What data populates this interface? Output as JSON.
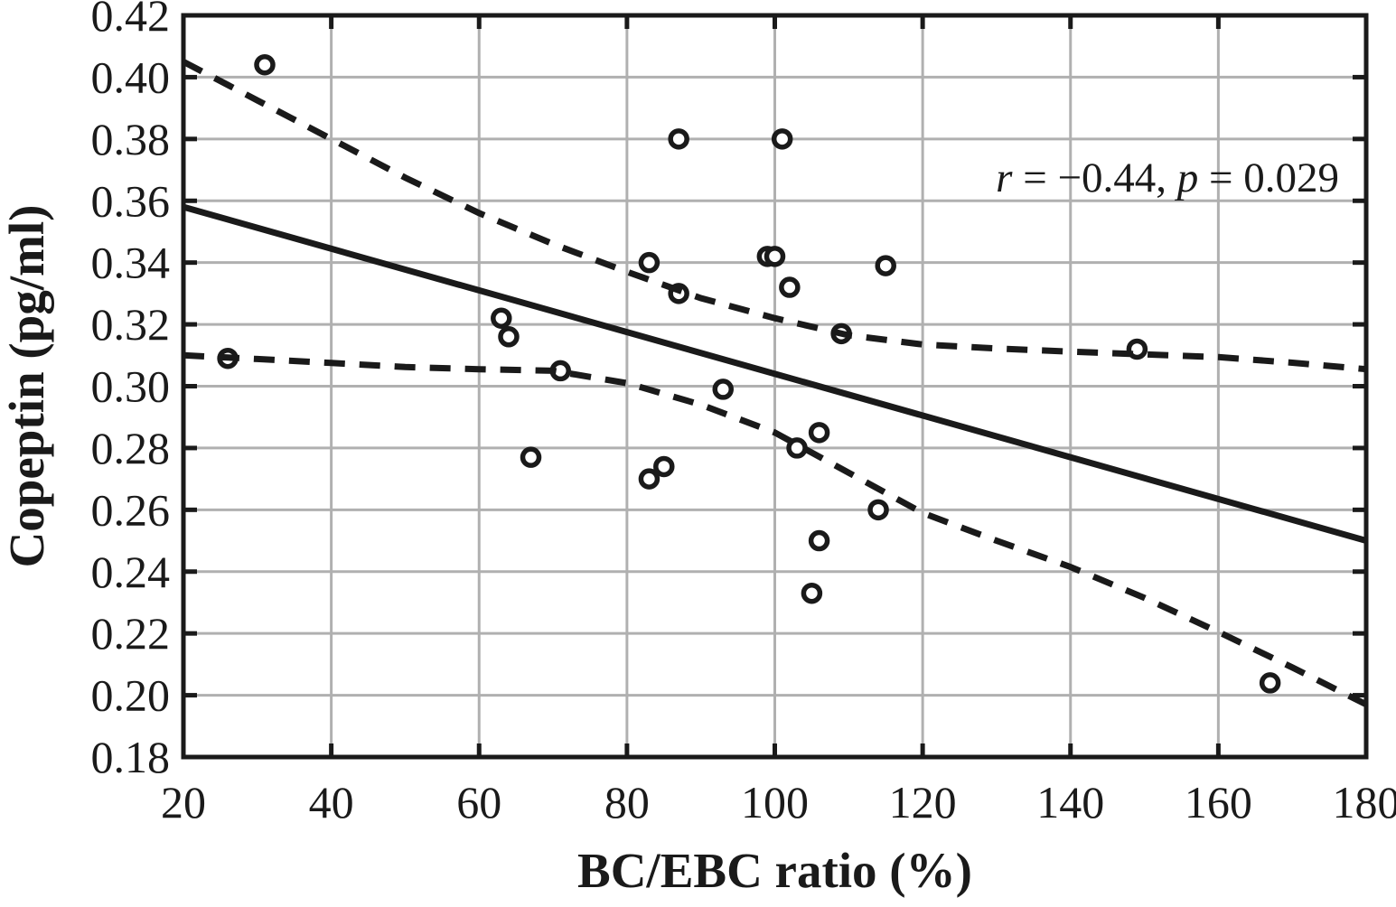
{
  "chart_data": {
    "type": "scatter",
    "title": "",
    "xlabel": "BC/EBC ratio (%)",
    "ylabel": "Copeptin (pg/ml)",
    "xlim": [
      20,
      180
    ],
    "ylim": [
      0.18,
      0.42
    ],
    "x_ticks": [
      "20",
      "40",
      "60",
      "80",
      "100",
      "120",
      "140",
      "160",
      "180"
    ],
    "y_ticks": [
      "0.18",
      "0.20",
      "0.22",
      "0.24",
      "0.26",
      "0.28",
      "0.30",
      "0.32",
      "0.34",
      "0.36",
      "0.38",
      "0.40",
      "0.42"
    ],
    "grid": true,
    "legend": "none",
    "annotation": {
      "parts": [
        {
          "text": "r",
          "italic": true
        },
        {
          "text": " = −0.44, ",
          "italic": false
        },
        {
          "text": "p",
          "italic": true
        },
        {
          "text": " = 0.029",
          "italic": false
        }
      ]
    },
    "points": [
      [
        26,
        0.309
      ],
      [
        31,
        0.404
      ],
      [
        63,
        0.322
      ],
      [
        64,
        0.316
      ],
      [
        67,
        0.277
      ],
      [
        71,
        0.305
      ],
      [
        83,
        0.34
      ],
      [
        83,
        0.27
      ],
      [
        85,
        0.274
      ],
      [
        87,
        0.38
      ],
      [
        87,
        0.33
      ],
      [
        93,
        0.299
      ],
      [
        99,
        0.342
      ],
      [
        100,
        0.342
      ],
      [
        101,
        0.38
      ],
      [
        102,
        0.332
      ],
      [
        103,
        0.28
      ],
      [
        105,
        0.233
      ],
      [
        106,
        0.285
      ],
      [
        106,
        0.25
      ],
      [
        109,
        0.317
      ],
      [
        114,
        0.26
      ],
      [
        115,
        0.339
      ],
      [
        149,
        0.312
      ],
      [
        167,
        0.204
      ]
    ],
    "regression_line": [
      [
        20,
        0.358
      ],
      [
        180,
        0.25
      ]
    ],
    "ci_upper": [
      [
        20,
        0.405
      ],
      [
        30,
        0.3925
      ],
      [
        40,
        0.38
      ],
      [
        50,
        0.3675
      ],
      [
        60,
        0.356
      ],
      [
        70,
        0.346
      ],
      [
        80,
        0.337
      ],
      [
        90,
        0.3285
      ],
      [
        100,
        0.322
      ],
      [
        110,
        0.3165
      ],
      [
        120,
        0.3135
      ],
      [
        130,
        0.3122
      ],
      [
        140,
        0.3112
      ],
      [
        150,
        0.3103
      ],
      [
        160,
        0.3094
      ],
      [
        170,
        0.3076
      ],
      [
        180,
        0.3055
      ]
    ],
    "ci_lower": [
      [
        20,
        0.31
      ],
      [
        30,
        0.3088
      ],
      [
        40,
        0.3075
      ],
      [
        50,
        0.3062
      ],
      [
        60,
        0.3055
      ],
      [
        70,
        0.305
      ],
      [
        80,
        0.301
      ],
      [
        90,
        0.294
      ],
      [
        100,
        0.285
      ],
      [
        110,
        0.272
      ],
      [
        120,
        0.259
      ],
      [
        130,
        0.25
      ],
      [
        140,
        0.2415
      ],
      [
        150,
        0.2315
      ],
      [
        160,
        0.2205
      ],
      [
        170,
        0.209
      ],
      [
        180,
        0.197
      ]
    ],
    "colors": {
      "ink": "#1a1a1a",
      "grid": "#b0b0b0",
      "background": "#ffffff",
      "marker_fill": "#ffffff"
    }
  }
}
